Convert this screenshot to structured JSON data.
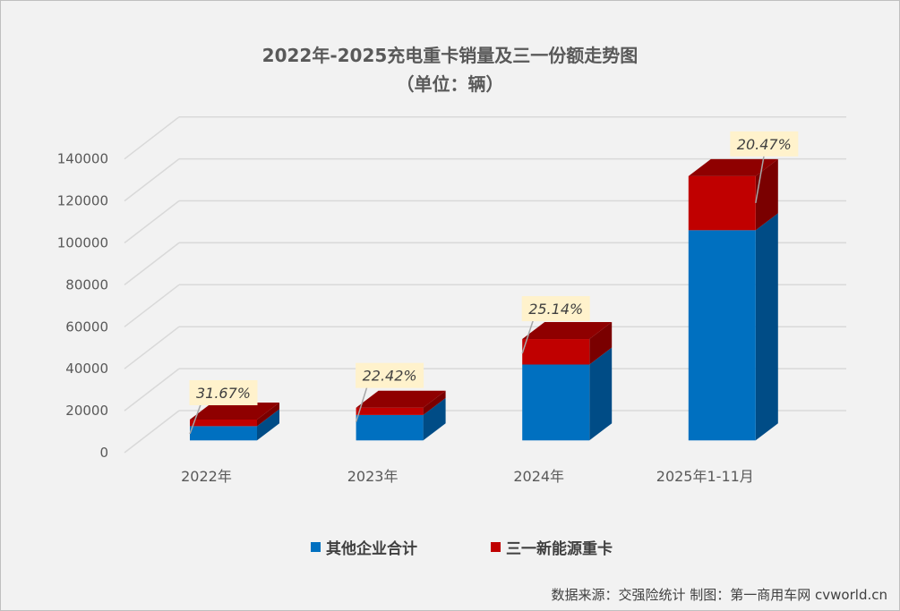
{
  "chart_data": {
    "type": "bar",
    "stacked": true,
    "three_d": true,
    "title": "2022年-2025充电重卡销量及三一份额走势图",
    "subtitle": "（单位：辆）",
    "xlabel": "",
    "ylabel": "",
    "ylim": [
      0,
      140000
    ],
    "yticks": [
      0,
      20000,
      40000,
      60000,
      80000,
      100000,
      120000,
      140000
    ],
    "grid": true,
    "legend_position": "bottom",
    "categories": [
      "2022年",
      "2023年",
      "2024年",
      "2025年1-11月"
    ],
    "series": [
      {
        "name": "其他企业合计",
        "color": "#0070C0",
        "values": [
          6790,
          12110,
          36160,
          100200
        ]
      },
      {
        "name": "三一新能源重卡",
        "color": "#C00000",
        "values": [
          3150,
          3500,
          12140,
          25800
        ]
      }
    ],
    "data_labels": [
      "31.67%",
      "22.42%",
      "25.14%",
      "20.47%"
    ],
    "label_box_color": "#FFF2CC"
  },
  "source": "数据来源：交强险统计  制图：第一商用车网 cvworld.cn"
}
